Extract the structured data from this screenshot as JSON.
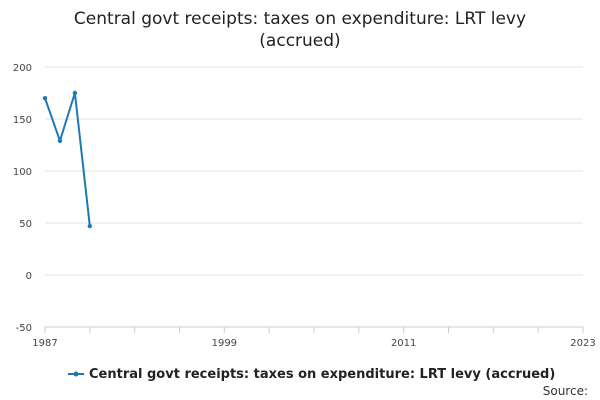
{
  "chart_data": {
    "type": "line",
    "title_lines": [
      "Central govt receipts: taxes on expenditure: LRT levy",
      "(accrued)"
    ],
    "x": [
      1987,
      1988,
      1989,
      1990
    ],
    "series": [
      {
        "name": "Central govt receipts: taxes on expenditure: LRT levy (accrued)",
        "values": [
          170,
          129,
          175,
          47
        ],
        "color": "#1f77b4"
      }
    ],
    "xlim": [
      1987,
      2023
    ],
    "ylim": [
      -50,
      200
    ],
    "xticks": [
      "1987",
      "1999",
      "2011",
      "2023"
    ],
    "yticks": [
      "200",
      "150",
      "100",
      "50",
      "0",
      "-50"
    ],
    "grid": true,
    "legend_position": "bottom-center"
  },
  "source_label": "Source:"
}
